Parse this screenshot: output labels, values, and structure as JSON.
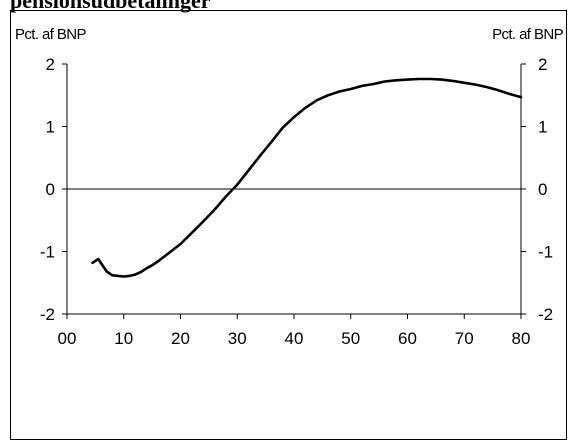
{
  "title": "pensionsudbetalinger",
  "chart_data": {
    "type": "line",
    "ylabel_left": "Pct. af BNP",
    "ylabel_right": "Pct. af BNP",
    "xlim": [
      0,
      80
    ],
    "ylim": [
      -2,
      2
    ],
    "x_tick_labels": [
      "00",
      "10",
      "20",
      "30",
      "40",
      "50",
      "60",
      "70",
      "80"
    ],
    "x_tick_values": [
      0,
      10,
      20,
      30,
      40,
      50,
      60,
      70,
      80
    ],
    "y_tick_values": [
      2,
      1,
      0,
      -1,
      -2
    ],
    "y_tick_labels": [
      "2",
      "1",
      "0",
      "-1",
      "-2"
    ],
    "zero_line": true,
    "grid": false,
    "series": [
      {
        "color": "#000000",
        "x": [
          4.5,
          5.5,
          7,
          8,
          9,
          10,
          11,
          12,
          13,
          14,
          15,
          16,
          17,
          18,
          19,
          20,
          22,
          24,
          26,
          28,
          30,
          32,
          34,
          36,
          38,
          40,
          42,
          44,
          46,
          48,
          50,
          52,
          54,
          56,
          58,
          60,
          62,
          64,
          66,
          68,
          70,
          72,
          74,
          76,
          78,
          80
        ],
        "y": [
          -1.18,
          -1.12,
          -1.32,
          -1.38,
          -1.39,
          -1.4,
          -1.39,
          -1.37,
          -1.33,
          -1.27,
          -1.22,
          -1.16,
          -1.09,
          -1.02,
          -0.95,
          -0.88,
          -0.7,
          -0.52,
          -0.33,
          -0.12,
          0.07,
          0.3,
          0.53,
          0.75,
          0.98,
          1.15,
          1.3,
          1.42,
          1.5,
          1.56,
          1.6,
          1.65,
          1.68,
          1.72,
          1.74,
          1.75,
          1.76,
          1.76,
          1.75,
          1.73,
          1.7,
          1.67,
          1.63,
          1.58,
          1.52,
          1.47
        ]
      }
    ]
  }
}
